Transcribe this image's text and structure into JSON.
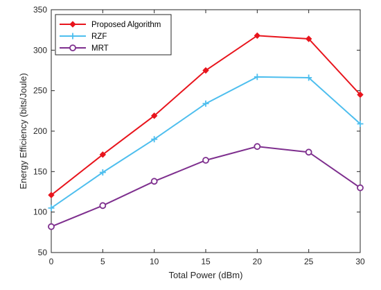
{
  "chart_data": {
    "type": "line",
    "title": "",
    "xlabel": "Total Power (dBm)",
    "ylabel": "Energy Efficiency (bits/Joule)",
    "x": [
      0,
      5,
      10,
      15,
      20,
      25,
      30
    ],
    "xlim": [
      0,
      30
    ],
    "ylim": [
      50,
      350
    ],
    "xticks": [
      0,
      5,
      10,
      15,
      20,
      25,
      30
    ],
    "yticks": [
      50,
      100,
      150,
      200,
      250,
      300,
      350
    ],
    "grid": false,
    "legend_position": "top-left",
    "series": [
      {
        "name": "Proposed Algorithm",
        "values": [
          121,
          171,
          219,
          275,
          318,
          314,
          245
        ],
        "color": "#e8141c",
        "marker": "diamond"
      },
      {
        "name": "RZF",
        "values": [
          105,
          149,
          190,
          234,
          267,
          266,
          209
        ],
        "color": "#4dbeee",
        "marker": "plus"
      },
      {
        "name": "MRT",
        "values": [
          82,
          108,
          138,
          164,
          181,
          174,
          130
        ],
        "color": "#7e2f8e",
        "marker": "circle"
      }
    ]
  }
}
